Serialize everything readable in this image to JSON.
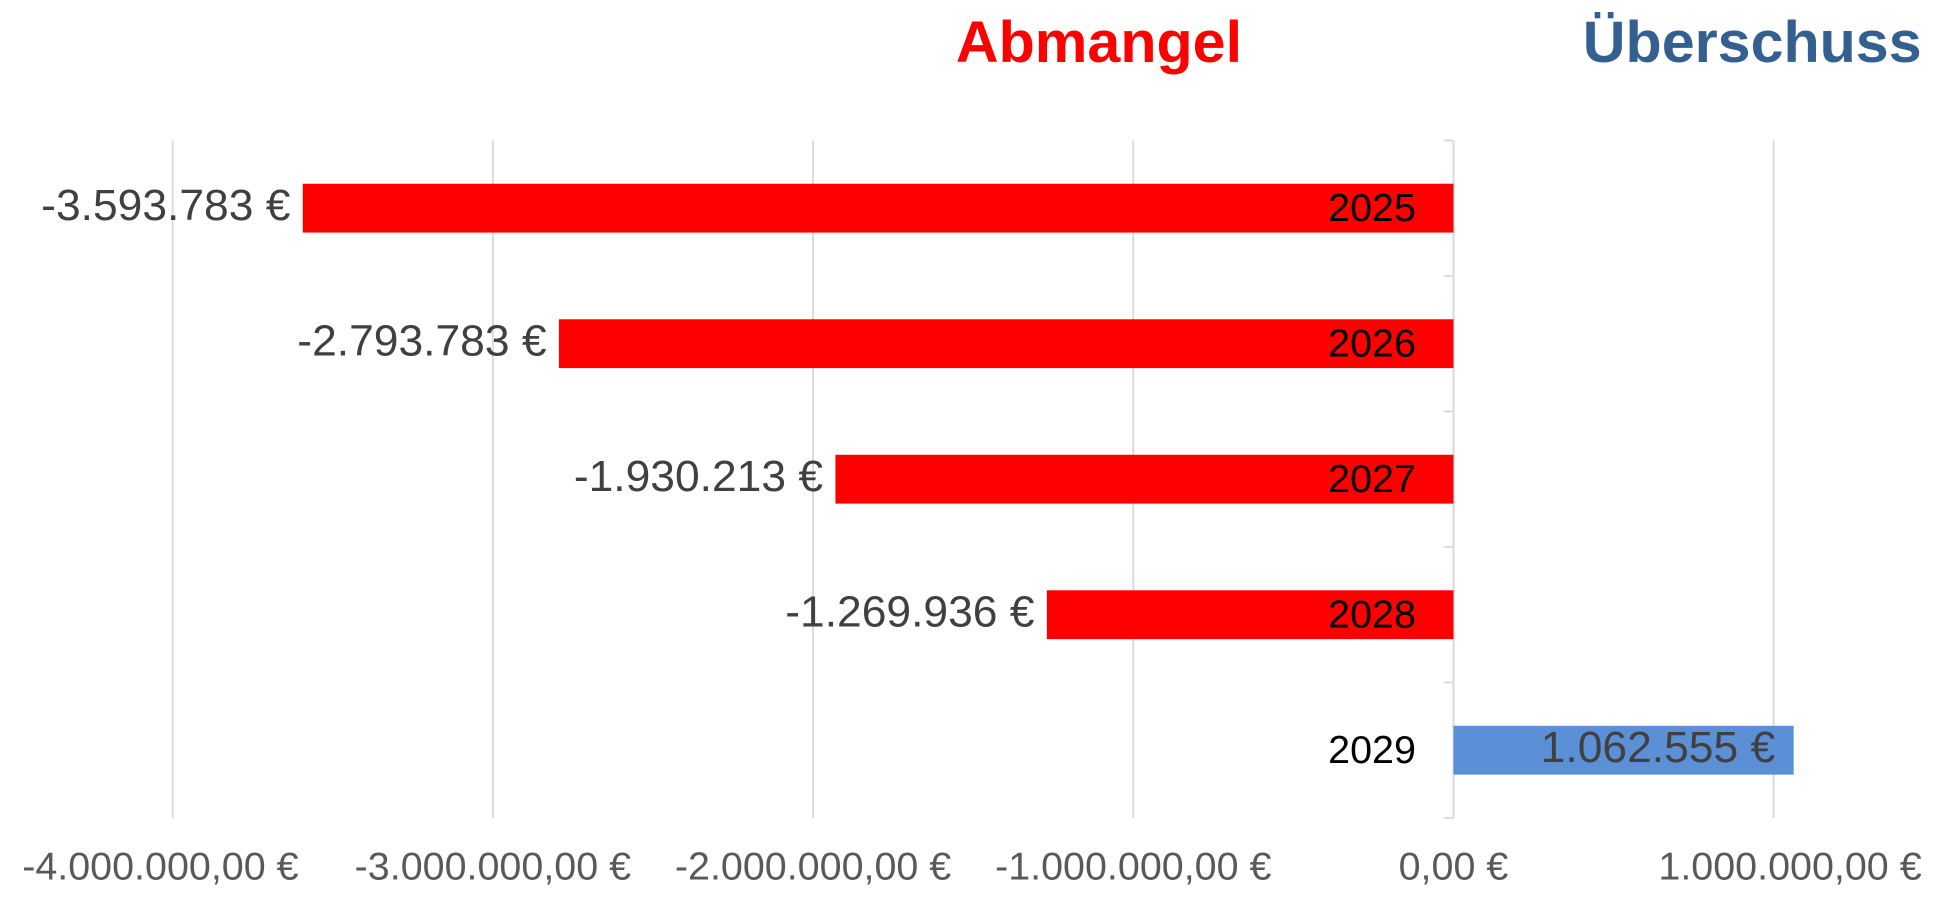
{
  "chart_data": {
    "type": "bar",
    "orientation": "horizontal",
    "annotations": [
      {
        "text": "Abmangel",
        "color": "#ff0000"
      },
      {
        "text": "Überschuss",
        "color": "#335f91"
      }
    ],
    "categories": [
      "2025",
      "2026",
      "2027",
      "2028",
      "2029"
    ],
    "values": [
      -3593783,
      -2793783,
      -1930213,
      -1269936,
      1062555
    ],
    "value_labels": [
      "-3.593.783 €",
      "-2.793.783 €",
      "-1.930.213 €",
      "-1.269.936 €",
      "1.062.555 €"
    ],
    "colors": [
      "#ff0000",
      "#ff0000",
      "#ff0000",
      "#ff0000",
      "#5b8fd6"
    ],
    "xlim": [
      -4000000,
      1000000
    ],
    "xticks": [
      {
        "value": -4000000,
        "label": "-4.000.000,00 €"
      },
      {
        "value": -3000000,
        "label": "-3.000.000,00 €"
      },
      {
        "value": -2000000,
        "label": "-2.000.000,00 €"
      },
      {
        "value": -1000000,
        "label": "-1.000.000,00 €"
      },
      {
        "value": 0,
        "label": "0,00 €"
      },
      {
        "value": 1000000,
        "label": "1.000.000,00 €"
      }
    ],
    "grid": true
  }
}
